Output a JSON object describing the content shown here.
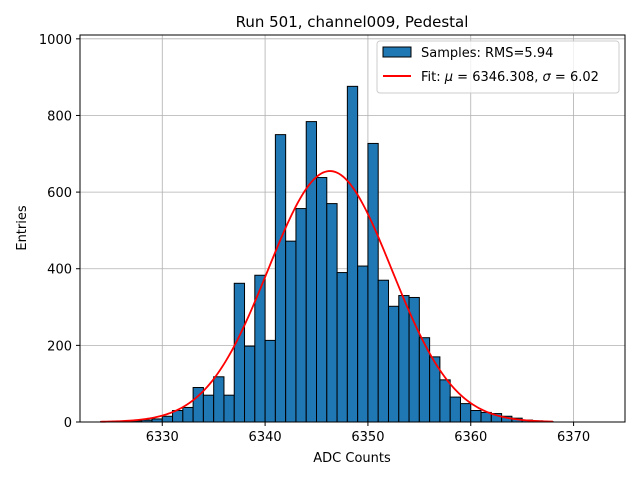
{
  "chart_data": {
    "type": "bar",
    "title": "Run 501, channel009, Pedestal",
    "xlabel": "ADC Counts",
    "ylabel": "Entries",
    "xlim": [
      6322,
      6375
    ],
    "ylim": [
      0,
      1010
    ],
    "xticks": [
      6330,
      6340,
      6350,
      6360,
      6370
    ],
    "yticks": [
      0,
      200,
      400,
      600,
      800,
      1000
    ],
    "grid": true,
    "legend_position": "top-right",
    "histogram": {
      "name": "Samples: RMS=5.94",
      "color": "#1f77b4",
      "edge_color": "#000000",
      "bin_width": 1,
      "bin_lefts": [
        6324,
        6325,
        6326,
        6327,
        6328,
        6329,
        6330,
        6331,
        6332,
        6333,
        6334,
        6335,
        6336,
        6337,
        6338,
        6339,
        6340,
        6341,
        6342,
        6343,
        6344,
        6345,
        6346,
        6347,
        6348,
        6349,
        6350,
        6351,
        6352,
        6353,
        6354,
        6355,
        6356,
        6357,
        6358,
        6359,
        6360,
        6361,
        6362,
        6363,
        6364,
        6365,
        6366,
        6367
      ],
      "values": [
        1,
        1,
        2,
        3,
        5,
        8,
        15,
        30,
        38,
        90,
        70,
        118,
        70,
        362,
        198,
        383,
        213,
        750,
        472,
        557,
        784,
        638,
        570,
        390,
        876,
        407,
        727,
        370,
        302,
        330,
        325,
        220,
        170,
        110,
        65,
        48,
        30,
        25,
        22,
        15,
        10,
        5,
        3,
        1
      ]
    },
    "fit": {
      "name": "Fit: μ = 6346.308, σ = 6.02",
      "label_prefix": "Fit: ",
      "mu_value": "6346.308",
      "sigma_value": "6.02",
      "color": "#ff0000",
      "mu": 6346.308,
      "sigma": 6.02,
      "amplitude": 655,
      "x_range": [
        6324,
        6368
      ]
    }
  }
}
